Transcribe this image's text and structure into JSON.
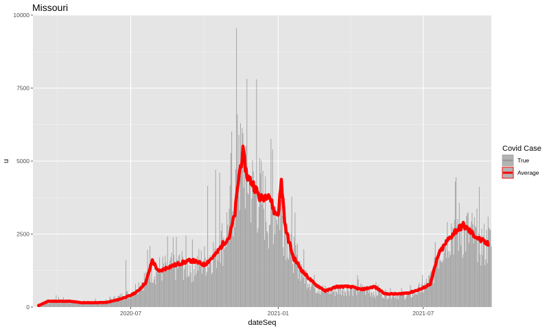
{
  "chart_data": {
    "type": "bar",
    "title": "Missouri",
    "xlabel": "dateSeq",
    "ylabel": "u",
    "ylim": [
      0,
      10000
    ],
    "yticks": [
      0,
      2500,
      5000,
      7500,
      10000
    ],
    "ytick_labels": [
      "0",
      "2500",
      "5000",
      "7500",
      "10000"
    ],
    "xlim": [
      "2020-03-01",
      "2021-09-24"
    ],
    "xticks": [
      "2020-07-01",
      "2021-01-01",
      "2021-07-01"
    ],
    "xtick_labels": [
      "2020-07",
      "2021-01",
      "2021-07"
    ],
    "grid": true,
    "background": "#e5e5e5",
    "legend": {
      "title": "Covid Case",
      "placement": "right",
      "entries": [
        "True",
        "Average"
      ]
    },
    "series": [
      {
        "name": "True",
        "kind": "bar",
        "color": "#a6a6a6",
        "note_points": "daily case counts (approximate envelope, with visible spikes)",
        "x": [
          "2020-03-08",
          "2020-03-20",
          "2020-04-01",
          "2020-04-15",
          "2020-05-01",
          "2020-05-15",
          "2020-06-01",
          "2020-06-15",
          "2020-07-01",
          "2020-07-10",
          "2020-07-20",
          "2020-07-25",
          "2020-08-01",
          "2020-08-15",
          "2020-09-01",
          "2020-09-15",
          "2020-10-01",
          "2020-10-15",
          "2020-10-25",
          "2020-11-01",
          "2020-11-08",
          "2020-11-13",
          "2020-11-18",
          "2020-11-23",
          "2020-12-01",
          "2020-12-10",
          "2020-12-20",
          "2021-01-01",
          "2021-01-10",
          "2021-01-20",
          "2021-02-01",
          "2021-02-15",
          "2021-03-01",
          "2021-03-15",
          "2021-04-01",
          "2021-04-15",
          "2021-05-01",
          "2021-05-15",
          "2021-06-01",
          "2021-06-15",
          "2021-07-01",
          "2021-07-10",
          "2021-07-20",
          "2021-08-01",
          "2021-08-10",
          "2021-08-20",
          "2021-09-01",
          "2021-09-15"
        ],
        "values": [
          100,
          200,
          250,
          200,
          150,
          170,
          200,
          350,
          500,
          800,
          1100,
          1400,
          1350,
          1450,
          1600,
          1500,
          1700,
          2100,
          2500,
          3300,
          4200,
          4800,
          5500,
          5000,
          4200,
          4100,
          3400,
          3900,
          3000,
          2100,
          1300,
          800,
          600,
          600,
          700,
          650,
          550,
          500,
          450,
          450,
          700,
          1000,
          2000,
          2800,
          3000,
          2800,
          2600,
          2300
        ],
        "spikes": [
          {
            "x": "2020-06-25",
            "value": 1600
          },
          {
            "x": "2020-07-25",
            "value": 2100
          },
          {
            "x": "2020-10-05",
            "value": 4150
          },
          {
            "x": "2020-10-15",
            "value": 4700
          },
          {
            "x": "2020-10-20",
            "value": 4600
          },
          {
            "x": "2020-11-10",
            "value": 9550
          },
          {
            "x": "2020-11-13",
            "value": 5900
          },
          {
            "x": "2020-12-05",
            "value": 7800
          },
          {
            "x": "2020-12-25",
            "value": 5400
          },
          {
            "x": "2021-08-10",
            "value": 4300
          },
          {
            "x": "2021-08-25",
            "value": 3200
          },
          {
            "x": "2021-09-20",
            "value": 3100
          }
        ]
      },
      {
        "name": "Average",
        "kind": "line",
        "color": "#ff0000",
        "x": [
          "2020-03-08",
          "2020-03-20",
          "2020-04-01",
          "2020-04-15",
          "2020-05-01",
          "2020-05-15",
          "2020-06-01",
          "2020-06-15",
          "2020-07-01",
          "2020-07-10",
          "2020-07-20",
          "2020-07-28",
          "2020-08-05",
          "2020-08-15",
          "2020-09-01",
          "2020-09-15",
          "2020-10-01",
          "2020-10-15",
          "2020-10-25",
          "2020-11-01",
          "2020-11-08",
          "2020-11-13",
          "2020-11-18",
          "2020-11-23",
          "2020-12-01",
          "2020-12-10",
          "2020-12-20",
          "2020-12-28",
          "2021-01-01",
          "2021-01-05",
          "2021-01-10",
          "2021-01-20",
          "2021-02-01",
          "2021-02-15",
          "2021-03-01",
          "2021-03-15",
          "2021-04-01",
          "2021-04-15",
          "2021-05-01",
          "2021-05-15",
          "2021-06-01",
          "2021-06-15",
          "2021-07-01",
          "2021-07-10",
          "2021-07-20",
          "2021-08-01",
          "2021-08-10",
          "2021-08-20",
          "2021-09-01",
          "2021-09-10",
          "2021-09-20"
        ],
        "values": [
          50,
          200,
          200,
          200,
          150,
          150,
          160,
          250,
          400,
          550,
          850,
          1600,
          1200,
          1350,
          1500,
          1600,
          1450,
          1800,
          2200,
          2400,
          3200,
          4500,
          5300,
          4500,
          4200,
          3700,
          3900,
          3200,
          3200,
          4300,
          2700,
          1700,
          1200,
          800,
          550,
          700,
          700,
          600,
          700,
          450,
          450,
          500,
          650,
          800,
          1800,
          2300,
          2600,
          2800,
          2500,
          2300,
          2150
        ]
      }
    ]
  }
}
